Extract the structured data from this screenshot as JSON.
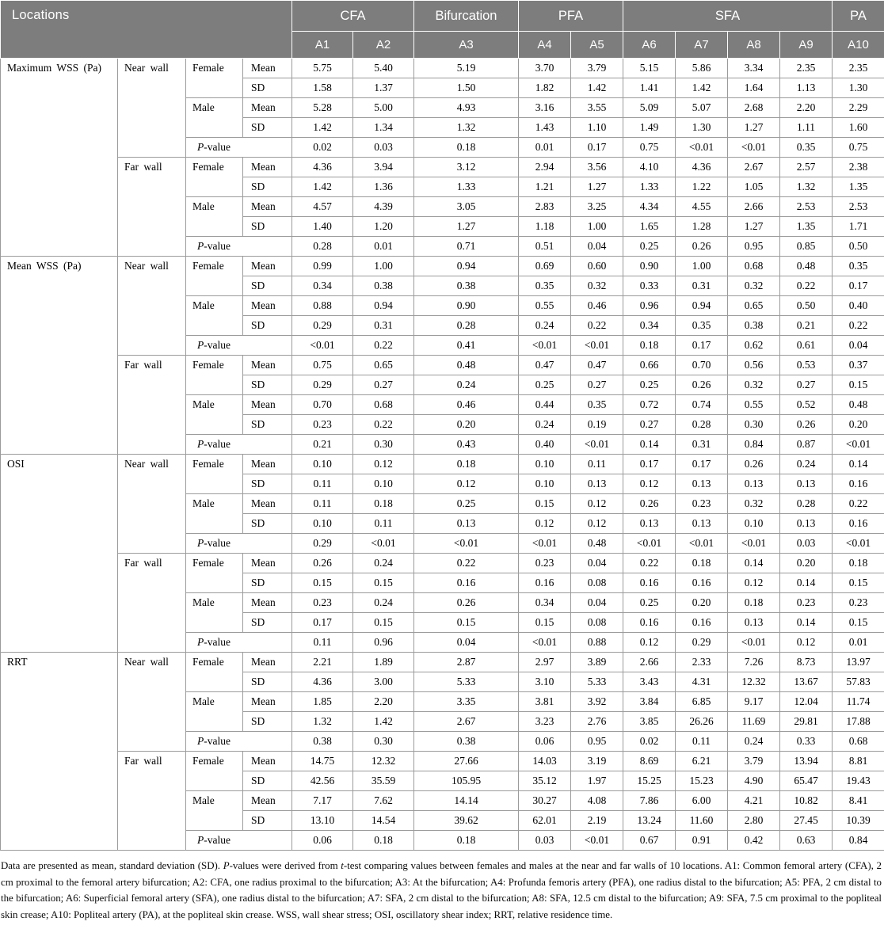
{
  "colors": {
    "header_bg": "#7d7d7d",
    "header_text": "#ffffff",
    "grid_border": "#9b9b9b"
  },
  "header": {
    "locations_label": "Locations",
    "groups": [
      {
        "label": "CFA",
        "span": 2
      },
      {
        "label": "Bifurcation",
        "span": 1
      },
      {
        "label": "PFA",
        "span": 2
      },
      {
        "label": "SFA",
        "span": 4
      },
      {
        "label": "PA",
        "span": 1
      }
    ],
    "columns": [
      "A1",
      "A2",
      "A3",
      "A4",
      "A5",
      "A6",
      "A7",
      "A8",
      "A9",
      "A10"
    ]
  },
  "labels": {
    "female": "Female",
    "male": "Male",
    "mean": "Mean",
    "sd": "SD",
    "p_italic": "P",
    "p_rest": "-value"
  },
  "sections": [
    {
      "metric": "Maximum WSS (Pa)",
      "walls": [
        {
          "wall": "Near wall",
          "female_mean": [
            "5.75",
            "5.40",
            "5.19",
            "3.70",
            "3.79",
            "5.15",
            "5.86",
            "3.34",
            "2.35",
            "2.35"
          ],
          "female_sd": [
            "1.58",
            "1.37",
            "1.50",
            "1.82",
            "1.42",
            "1.41",
            "1.42",
            "1.64",
            "1.13",
            "1.30"
          ],
          "male_mean": [
            "5.28",
            "5.00",
            "4.93",
            "3.16",
            "3.55",
            "5.09",
            "5.07",
            "2.68",
            "2.20",
            "2.29"
          ],
          "male_sd": [
            "1.42",
            "1.34",
            "1.32",
            "1.43",
            "1.10",
            "1.49",
            "1.30",
            "1.27",
            "1.11",
            "1.60"
          ],
          "p_values": [
            "0.02",
            "0.03",
            "0.18",
            "0.01",
            "0.17",
            "0.75",
            "<0.01",
            "<0.01",
            "0.35",
            "0.75"
          ]
        },
        {
          "wall": "Far wall",
          "female_mean": [
            "4.36",
            "3.94",
            "3.12",
            "2.94",
            "3.56",
            "4.10",
            "4.36",
            "2.67",
            "2.57",
            "2.38"
          ],
          "female_sd": [
            "1.42",
            "1.36",
            "1.33",
            "1.21",
            "1.27",
            "1.33",
            "1.22",
            "1.05",
            "1.32",
            "1.35"
          ],
          "male_mean": [
            "4.57",
            "4.39",
            "3.05",
            "2.83",
            "3.25",
            "4.34",
            "4.55",
            "2.66",
            "2.53",
            "2.53"
          ],
          "male_sd": [
            "1.40",
            "1.20",
            "1.27",
            "1.18",
            "1.00",
            "1.65",
            "1.28",
            "1.27",
            "1.35",
            "1.71"
          ],
          "p_values": [
            "0.28",
            "0.01",
            "0.71",
            "0.51",
            "0.04",
            "0.25",
            "0.26",
            "0.95",
            "0.85",
            "0.50"
          ]
        }
      ]
    },
    {
      "metric": "Mean WSS (Pa)",
      "walls": [
        {
          "wall": "Near wall",
          "female_mean": [
            "0.99",
            "1.00",
            "0.94",
            "0.69",
            "0.60",
            "0.90",
            "1.00",
            "0.68",
            "0.48",
            "0.35"
          ],
          "female_sd": [
            "0.34",
            "0.38",
            "0.38",
            "0.35",
            "0.32",
            "0.33",
            "0.31",
            "0.32",
            "0.22",
            "0.17"
          ],
          "male_mean": [
            "0.88",
            "0.94",
            "0.90",
            "0.55",
            "0.46",
            "0.96",
            "0.94",
            "0.65",
            "0.50",
            "0.40"
          ],
          "male_sd": [
            "0.29",
            "0.31",
            "0.28",
            "0.24",
            "0.22",
            "0.34",
            "0.35",
            "0.38",
            "0.21",
            "0.22"
          ],
          "p_values": [
            "<0.01",
            "0.22",
            "0.41",
            "<0.01",
            "<0.01",
            "0.18",
            "0.17",
            "0.62",
            "0.61",
            "0.04"
          ]
        },
        {
          "wall": "Far wall",
          "female_mean": [
            "0.75",
            "0.65",
            "0.48",
            "0.47",
            "0.47",
            "0.66",
            "0.70",
            "0.56",
            "0.53",
            "0.37"
          ],
          "female_sd": [
            "0.29",
            "0.27",
            "0.24",
            "0.25",
            "0.27",
            "0.25",
            "0.26",
            "0.32",
            "0.27",
            "0.15"
          ],
          "male_mean": [
            "0.70",
            "0.68",
            "0.46",
            "0.44",
            "0.35",
            "0.72",
            "0.74",
            "0.55",
            "0.52",
            "0.48"
          ],
          "male_sd": [
            "0.23",
            "0.22",
            "0.20",
            "0.24",
            "0.19",
            "0.27",
            "0.28",
            "0.30",
            "0.26",
            "0.20"
          ],
          "p_values": [
            "0.21",
            "0.30",
            "0.43",
            "0.40",
            "<0.01",
            "0.14",
            "0.31",
            "0.84",
            "0.87",
            "<0.01"
          ]
        }
      ]
    },
    {
      "metric": "OSI",
      "walls": [
        {
          "wall": "Near wall",
          "female_mean": [
            "0.10",
            "0.12",
            "0.18",
            "0.10",
            "0.11",
            "0.17",
            "0.17",
            "0.26",
            "0.24",
            "0.14"
          ],
          "female_sd": [
            "0.11",
            "0.10",
            "0.12",
            "0.10",
            "0.13",
            "0.12",
            "0.13",
            "0.13",
            "0.13",
            "0.16"
          ],
          "male_mean": [
            "0.11",
            "0.18",
            "0.25",
            "0.15",
            "0.12",
            "0.26",
            "0.23",
            "0.32",
            "0.28",
            "0.22"
          ],
          "male_sd": [
            "0.10",
            "0.11",
            "0.13",
            "0.12",
            "0.12",
            "0.13",
            "0.13",
            "0.10",
            "0.13",
            "0.16"
          ],
          "p_values": [
            "0.29",
            "<0.01",
            "<0.01",
            "<0.01",
            "0.48",
            "<0.01",
            "<0.01",
            "<0.01",
            "0.03",
            "<0.01"
          ]
        },
        {
          "wall": "Far wall",
          "female_mean": [
            "0.26",
            "0.24",
            "0.22",
            "0.23",
            "0.04",
            "0.22",
            "0.18",
            "0.14",
            "0.20",
            "0.18"
          ],
          "female_sd": [
            "0.15",
            "0.15",
            "0.16",
            "0.16",
            "0.08",
            "0.16",
            "0.16",
            "0.12",
            "0.14",
            "0.15"
          ],
          "male_mean": [
            "0.23",
            "0.24",
            "0.26",
            "0.34",
            "0.04",
            "0.25",
            "0.20",
            "0.18",
            "0.23",
            "0.23"
          ],
          "male_sd": [
            "0.17",
            "0.15",
            "0.15",
            "0.15",
            "0.08",
            "0.16",
            "0.16",
            "0.13",
            "0.14",
            "0.15"
          ],
          "p_values": [
            "0.11",
            "0.96",
            "0.04",
            "<0.01",
            "0.88",
            "0.12",
            "0.29",
            "<0.01",
            "0.12",
            "0.01"
          ]
        }
      ]
    },
    {
      "metric": "RRT",
      "walls": [
        {
          "wall": "Near wall",
          "female_mean": [
            "2.21",
            "1.89",
            "2.87",
            "2.97",
            "3.89",
            "2.66",
            "2.33",
            "7.26",
            "8.73",
            "13.97"
          ],
          "female_sd": [
            "4.36",
            "3.00",
            "5.33",
            "3.10",
            "5.33",
            "3.43",
            "4.31",
            "12.32",
            "13.67",
            "57.83"
          ],
          "male_mean": [
            "1.85",
            "2.20",
            "3.35",
            "3.81",
            "3.92",
            "3.84",
            "6.85",
            "9.17",
            "12.04",
            "11.74"
          ],
          "male_sd": [
            "1.32",
            "1.42",
            "2.67",
            "3.23",
            "2.76",
            "3.85",
            "26.26",
            "11.69",
            "29.81",
            "17.88"
          ],
          "p_values": [
            "0.38",
            "0.30",
            "0.38",
            "0.06",
            "0.95",
            "0.02",
            "0.11",
            "0.24",
            "0.33",
            "0.68"
          ]
        },
        {
          "wall": "Far wall",
          "female_mean": [
            "14.75",
            "12.32",
            "27.66",
            "14.03",
            "3.19",
            "8.69",
            "6.21",
            "3.79",
            "13.94",
            "8.81"
          ],
          "female_sd": [
            "42.56",
            "35.59",
            "105.95",
            "35.12",
            "1.97",
            "15.25",
            "15.23",
            "4.90",
            "65.47",
            "19.43"
          ],
          "male_mean": [
            "7.17",
            "7.62",
            "14.14",
            "30.27",
            "4.08",
            "7.86",
            "6.00",
            "4.21",
            "10.82",
            "8.41"
          ],
          "male_sd": [
            "13.10",
            "14.54",
            "39.62",
            "62.01",
            "2.19",
            "13.24",
            "11.60",
            "2.80",
            "27.45",
            "10.39"
          ],
          "p_values": [
            "0.06",
            "0.18",
            "0.18",
            "0.03",
            "<0.01",
            "0.67",
            "0.91",
            "0.42",
            "0.63",
            "0.84"
          ]
        }
      ]
    }
  ],
  "footnote": {
    "segments": [
      {
        "text": "Data are presented as mean, standard deviation (SD). ",
        "italic": false
      },
      {
        "text": "P",
        "italic": true
      },
      {
        "text": "-values were derived from ",
        "italic": false
      },
      {
        "text": "t",
        "italic": true
      },
      {
        "text": "-test comparing values between females and males at the near and far walls of 10 locations. A1: Common femoral artery (CFA), 2 cm proximal to the femoral artery bifurcation; A2: CFA, one radius proximal to the bifurcation; A3: At the bifurcation; A4: Profunda femoris artery (PFA), one radius distal to the bifurcation; A5: PFA, 2 cm distal to the bifurcation; A6: Superficial femoral artery (SFA), one radius distal to the bifurcation; A7: SFA, 2 cm distal to the bifurcation; A8: SFA, 12.5 cm distal to the bifurcation; A9: SFA, 7.5 cm proximal to the popliteal skin crease; A10: Popliteal artery (PA), at the popliteal skin crease. WSS, wall shear stress; OSI, oscillatory shear index; RRT, relative residence time.",
        "italic": false
      }
    ]
  }
}
